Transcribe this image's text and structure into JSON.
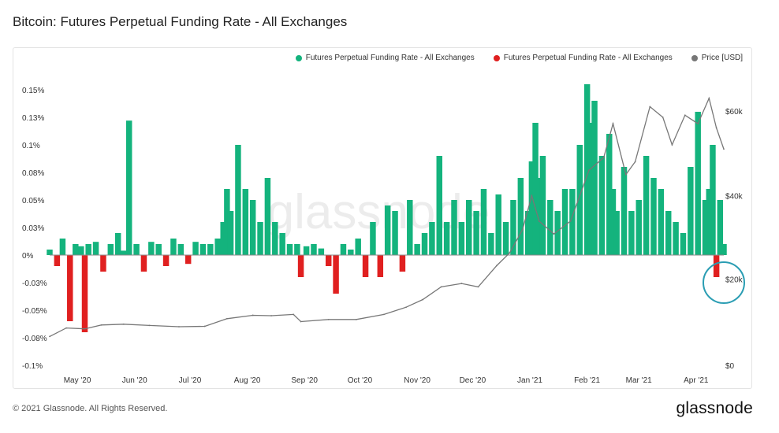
{
  "title": "Bitcoin: Futures Perpetual Funding Rate - All Exchanges",
  "footer": {
    "copyright": "© 2021 Glassnode. All Rights Reserved.",
    "logo": "glassnode"
  },
  "watermark": "glassnode",
  "legend": [
    {
      "label": "Futures Perpetual Funding Rate - All Exchanges",
      "color": "#14b37d"
    },
    {
      "label": "Futures Perpetual Funding Rate - All Exchanges",
      "color": "#e02020"
    },
    {
      "label": "Price [USD]",
      "color": "#777777"
    }
  ],
  "chart_data": {
    "type": "area",
    "x_tick_labels": [
      "May '20",
      "Jun '20",
      "Jul '20",
      "Aug '20",
      "Sep '20",
      "Oct '20",
      "Nov '20",
      "Dec '20",
      "Jan '21",
      "Feb '21",
      "Mar '21",
      "Apr '21"
    ],
    "y_left_ticks": [
      "0.15%",
      "0.13%",
      "0.1%",
      "0.08%",
      "0.05%",
      "0.03%",
      "0%",
      "-0.03%",
      "-0.05%",
      "-0.08%",
      "-0.1%"
    ],
    "y_left_range": [
      -0.1,
      0.15
    ],
    "y_right_ticks": [
      "$60k",
      "$40k",
      "$20k",
      "$0"
    ],
    "y_right_range": [
      0,
      65000
    ],
    "colors": {
      "positive": "#14b37d",
      "negative": "#e02020",
      "price": "#777777",
      "highlight": "#2a9db3"
    },
    "series": [
      {
        "name": "Futures Perpetual Funding Rate - All Exchanges",
        "axis": "left",
        "x": [
          "2020-04-22",
          "2020-04-26",
          "2020-04-29",
          "2020-05-03",
          "2020-05-06",
          "2020-05-09",
          "2020-05-11",
          "2020-05-13",
          "2020-05-17",
          "2020-05-21",
          "2020-05-25",
          "2020-05-29",
          "2020-06-01",
          "2020-06-04",
          "2020-06-08",
          "2020-06-12",
          "2020-06-16",
          "2020-06-20",
          "2020-06-24",
          "2020-06-28",
          "2020-07-02",
          "2020-07-06",
          "2020-07-10",
          "2020-07-14",
          "2020-07-18",
          "2020-07-22",
          "2020-07-25",
          "2020-07-27",
          "2020-07-29",
          "2020-08-02",
          "2020-08-06",
          "2020-08-10",
          "2020-08-14",
          "2020-08-18",
          "2020-08-22",
          "2020-08-26",
          "2020-08-30",
          "2020-09-03",
          "2020-09-05",
          "2020-09-08",
          "2020-09-12",
          "2020-09-16",
          "2020-09-20",
          "2020-09-24",
          "2020-09-28",
          "2020-10-02",
          "2020-10-06",
          "2020-10-10",
          "2020-10-14",
          "2020-10-18",
          "2020-10-22",
          "2020-10-26",
          "2020-10-30",
          "2020-11-03",
          "2020-11-07",
          "2020-11-11",
          "2020-11-15",
          "2020-11-19",
          "2020-11-23",
          "2020-11-27",
          "2020-12-01",
          "2020-12-05",
          "2020-12-09",
          "2020-12-13",
          "2020-12-17",
          "2020-12-21",
          "2020-12-25",
          "2020-12-29",
          "2021-01-02",
          "2021-01-06",
          "2021-01-08",
          "2021-01-10",
          "2021-01-12",
          "2021-01-14",
          "2021-01-18",
          "2021-01-22",
          "2021-01-26",
          "2021-01-30",
          "2021-02-03",
          "2021-02-07",
          "2021-02-09",
          "2021-02-11",
          "2021-02-15",
          "2021-02-19",
          "2021-02-21",
          "2021-02-23",
          "2021-02-27",
          "2021-03-03",
          "2021-03-07",
          "2021-03-11",
          "2021-03-15",
          "2021-03-19",
          "2021-03-23",
          "2021-03-27",
          "2021-03-31",
          "2021-04-04",
          "2021-04-08",
          "2021-04-12",
          "2021-04-14",
          "2021-04-16",
          "2021-04-18",
          "2021-04-20",
          "2021-04-22"
        ],
        "values": [
          0.005,
          -0.01,
          0.015,
          -0.06,
          0.01,
          0.008,
          -0.07,
          0.01,
          0.012,
          -0.015,
          0.01,
          0.02,
          0.004,
          0.122,
          0.01,
          -0.015,
          0.012,
          0.01,
          -0.01,
          0.015,
          0.01,
          -0.008,
          0.012,
          0.01,
          0.01,
          0.015,
          0.03,
          0.06,
          0.04,
          0.1,
          0.06,
          0.05,
          0.03,
          0.07,
          0.03,
          0.02,
          0.01,
          0.01,
          -0.02,
          0.008,
          0.01,
          0.006,
          -0.01,
          -0.035,
          0.01,
          0.005,
          0.015,
          -0.02,
          0.03,
          -0.02,
          0.045,
          0.04,
          -0.015,
          0.05,
          0.01,
          0.02,
          0.03,
          0.09,
          0.03,
          0.05,
          0.03,
          0.05,
          0.04,
          0.06,
          0.02,
          0.055,
          0.03,
          0.05,
          0.07,
          0.04,
          0.085,
          0.12,
          0.07,
          0.09,
          0.05,
          0.04,
          0.06,
          0.06,
          0.1,
          0.155,
          0.12,
          0.14,
          0.09,
          0.11,
          0.06,
          0.04,
          0.08,
          0.04,
          0.05,
          0.09,
          0.07,
          0.06,
          0.04,
          0.03,
          0.02,
          0.08,
          0.13,
          0.05,
          0.06,
          0.1,
          -0.02,
          0.05,
          0.01
        ]
      },
      {
        "name": "Price [USD]",
        "axis": "right",
        "x": [
          "2020-04-22",
          "2020-05-01",
          "2020-05-11",
          "2020-05-20",
          "2020-06-01",
          "2020-06-15",
          "2020-07-01",
          "2020-07-15",
          "2020-07-27",
          "2020-08-10",
          "2020-08-20",
          "2020-09-01",
          "2020-09-05",
          "2020-09-20",
          "2020-10-05",
          "2020-10-20",
          "2020-11-01",
          "2020-11-10",
          "2020-11-20",
          "2020-12-01",
          "2020-12-10",
          "2020-12-20",
          "2020-12-27",
          "2021-01-03",
          "2021-01-08",
          "2021-01-12",
          "2021-01-20",
          "2021-01-29",
          "2021-02-08",
          "2021-02-16",
          "2021-02-21",
          "2021-02-28",
          "2021-03-05",
          "2021-03-13",
          "2021-03-20",
          "2021-03-25",
          "2021-04-01",
          "2021-04-08",
          "2021-04-14",
          "2021-04-18",
          "2021-04-22"
        ],
        "values": [
          6800,
          8800,
          8600,
          9500,
          9700,
          9400,
          9100,
          9200,
          11000,
          11800,
          11700,
          12000,
          10300,
          10800,
          10800,
          12000,
          13700,
          15500,
          18500,
          19300,
          18500,
          23500,
          26500,
          32000,
          40000,
          34000,
          31000,
          34000,
          46000,
          49000,
          57000,
          45000,
          48000,
          61000,
          58500,
          52000,
          59000,
          57000,
          63000,
          56000,
          51000
        ]
      }
    ]
  }
}
